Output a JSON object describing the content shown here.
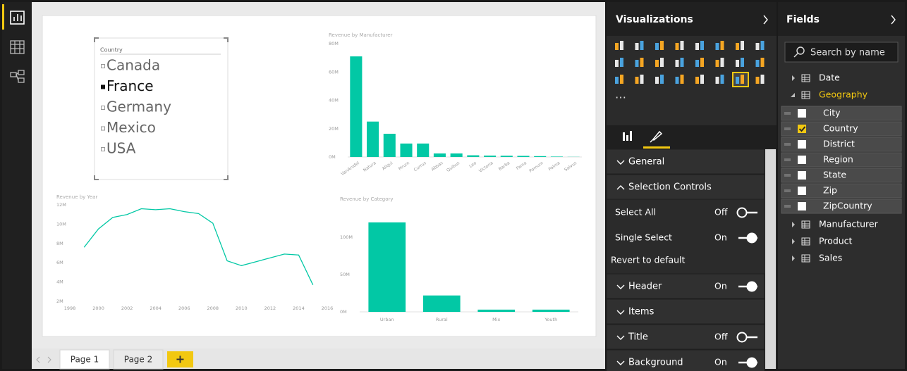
{
  "slicer": {
    "header": "Country",
    "items": [
      {
        "label": "Canada",
        "selected": false
      },
      {
        "label": "France",
        "selected": true
      },
      {
        "label": "Germany",
        "selected": false
      },
      {
        "label": "Mexico",
        "selected": false
      },
      {
        "label": "USA",
        "selected": false
      }
    ]
  },
  "chart_data": [
    {
      "type": "bar",
      "title": "Revenue by Manufacturer",
      "color": "#02c8a5",
      "categories": [
        "VanArsdel",
        "Natura",
        "Aliqui",
        "Pirum",
        "Currus",
        "Abbas",
        "Quibus",
        "Leo",
        "Victoria",
        "Barba",
        "Fama",
        "Pomum",
        "Palma",
        "Salvus"
      ],
      "values": [
        71,
        25,
        16.4,
        9.5,
        9.5,
        2.5,
        2.5,
        1.2,
        1,
        0.9,
        0.8,
        0.6,
        0.3,
        0.1
      ],
      "ylim": [
        0,
        80
      ],
      "yticks": [
        {
          "value": 0,
          "label": "0M"
        },
        {
          "value": 20,
          "label": "20M"
        },
        {
          "value": 40,
          "label": "40M"
        },
        {
          "value": 60,
          "label": "60M"
        },
        {
          "value": 80,
          "label": "80M"
        }
      ]
    },
    {
      "type": "line",
      "title": "Revenue by Year",
      "color": "#02c8a5",
      "x": [
        1999,
        2000,
        2001,
        2002,
        2003,
        2004,
        2005,
        2006,
        2007,
        2008,
        2009,
        2010,
        2011,
        2012,
        2013,
        2014,
        2015
      ],
      "values": [
        7.6,
        9.5,
        10.7,
        11.0,
        11.6,
        11.5,
        11.6,
        11.3,
        11.1,
        10.1,
        6.2,
        5.7,
        6.1,
        6.5,
        6.9,
        6.8,
        3.7
      ],
      "xlim": [
        1998,
        2016
      ],
      "xticks": [
        1998,
        2000,
        2002,
        2004,
        2006,
        2008,
        2010,
        2012,
        2014,
        2016
      ],
      "ylim": [
        2,
        12
      ],
      "yticks": [
        {
          "value": 2,
          "label": "2M"
        },
        {
          "value": 4,
          "label": "4M"
        },
        {
          "value": 6,
          "label": "6M"
        },
        {
          "value": 8,
          "label": "8M"
        },
        {
          "value": 10,
          "label": "10M"
        },
        {
          "value": 12,
          "label": "12M"
        }
      ]
    },
    {
      "type": "bar",
      "title": "Revenue by Category",
      "color": "#02c8a5",
      "categories": [
        "Urban",
        "Rural",
        "Mix",
        "Youth"
      ],
      "values": [
        120,
        22,
        3,
        3
      ],
      "ylim": [
        0,
        135
      ],
      "yticks": [
        {
          "value": 0,
          "label": "0M"
        },
        {
          "value": 50,
          "label": "50M"
        },
        {
          "value": 100,
          "label": "100M"
        }
      ]
    }
  ],
  "visualizations": {
    "title": "Visualizations",
    "sections": [
      {
        "label": "General",
        "expanded": false
      },
      {
        "label": "Selection Controls",
        "expanded": true,
        "options": [
          {
            "label": "Select All",
            "state": "Off",
            "on": false
          },
          {
            "label": "Single Select",
            "state": "On",
            "on": true
          }
        ],
        "revert": "Revert to default"
      },
      {
        "label": "Header",
        "expanded": false,
        "state": "On",
        "on": true
      },
      {
        "label": "Items",
        "expanded": false
      },
      {
        "label": "Title",
        "expanded": false,
        "state": "Off",
        "on": false
      },
      {
        "label": "Background",
        "expanded": false,
        "state": "On",
        "on": true
      }
    ]
  },
  "fields": {
    "title": "Fields",
    "search_placeholder": "Search by name",
    "tables": [
      {
        "name": "Date",
        "expanded": false
      },
      {
        "name": "Geography",
        "expanded": true,
        "fields": [
          {
            "name": "City",
            "checked": false
          },
          {
            "name": "Country",
            "checked": true
          },
          {
            "name": "District",
            "checked": false
          },
          {
            "name": "Region",
            "checked": false
          },
          {
            "name": "State",
            "checked": false
          },
          {
            "name": "Zip",
            "checked": false
          },
          {
            "name": "ZipCountry",
            "checked": false
          }
        ]
      },
      {
        "name": "Manufacturer",
        "expanded": false
      },
      {
        "name": "Product",
        "expanded": false
      },
      {
        "name": "Sales",
        "expanded": false
      }
    ]
  },
  "pages": {
    "tabs": [
      "Page 1",
      "Page 2"
    ],
    "add": "+"
  }
}
